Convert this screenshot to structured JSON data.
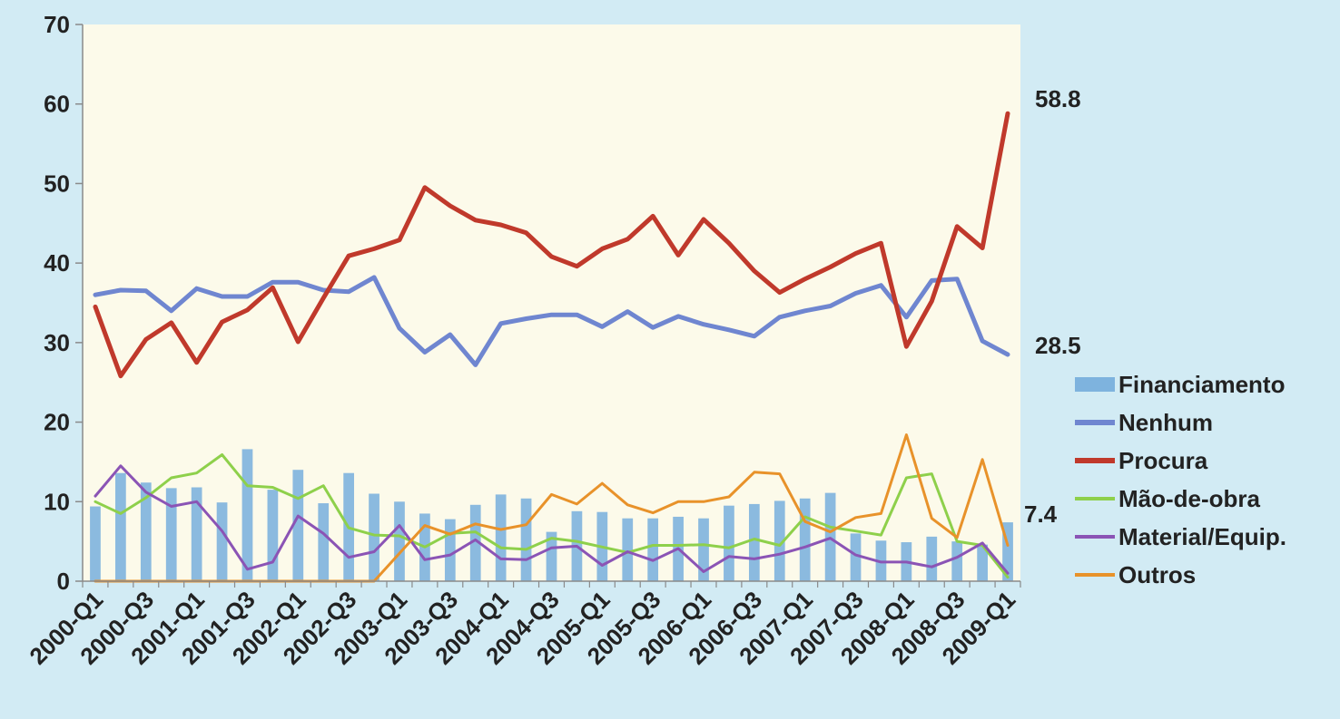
{
  "chart_data": {
    "type": "bar+line",
    "title": "",
    "xlabel": "",
    "ylabel": "",
    "ylim": [
      0,
      70
    ],
    "y_ticks": [
      0,
      10,
      20,
      30,
      40,
      50,
      60,
      70
    ],
    "grid": false,
    "legend_position": "right",
    "categories": [
      "2000-Q1",
      "2000-Q2",
      "2000-Q3",
      "2000-Q4",
      "2001-Q1",
      "2001-Q2",
      "2001-Q3",
      "2001-Q4",
      "2002-Q1",
      "2002-Q2",
      "2002-Q3",
      "2002-Q4",
      "2003-Q1",
      "2003-Q2",
      "2003-Q3",
      "2003-Q4",
      "2004-Q1",
      "2004-Q2",
      "2004-Q3",
      "2004-Q4",
      "2005-Q1",
      "2005-Q2",
      "2005-Q3",
      "2005-Q4",
      "2006-Q1",
      "2006-Q2",
      "2006-Q3",
      "2006-Q4",
      "2007-Q1",
      "2007-Q2",
      "2007-Q3",
      "2007-Q4",
      "2008-Q1",
      "2008-Q2",
      "2008-Q3",
      "2008-Q4",
      "2009-Q1"
    ],
    "x_tick_labels": [
      "2000-Q1",
      "2000-Q3",
      "2001-Q1",
      "2001-Q3",
      "2002-Q1",
      "2002-Q3",
      "2003-Q1",
      "2003-Q3",
      "2004-Q1",
      "2004-Q3",
      "2005-Q1",
      "2005-Q3",
      "2006-Q1",
      "2006-Q3",
      "2007-Q1",
      "2007-Q3",
      "2008-Q1",
      "2008-Q3",
      "2009-Q1"
    ],
    "series": [
      {
        "name": "Financiamento",
        "kind": "bar",
        "color": "#7eb3de",
        "values": [
          9.4,
          13.6,
          12.4,
          11.7,
          11.8,
          9.9,
          16.6,
          11.5,
          14.0,
          9.8,
          13.6,
          11.0,
          10.0,
          8.5,
          7.8,
          9.6,
          10.9,
          10.4,
          6.2,
          8.8,
          8.7,
          7.9,
          7.9,
          8.1,
          7.9,
          9.5,
          9.7,
          10.1,
          10.4,
          11.1,
          6.0,
          5.1,
          4.9,
          5.6,
          5.0,
          4.6,
          7.4
        ]
      },
      {
        "name": "Nenhum",
        "kind": "line",
        "color": "#6f86d0",
        "values": [
          36.0,
          36.6,
          36.5,
          34.0,
          36.8,
          35.8,
          35.8,
          37.6,
          37.6,
          36.6,
          36.4,
          38.2,
          31.8,
          28.8,
          31.0,
          27.2,
          32.4,
          33.0,
          33.5,
          33.5,
          32.0,
          33.9,
          31.9,
          33.3,
          32.3,
          31.6,
          30.8,
          33.2,
          34.0,
          34.6,
          36.2,
          37.2,
          33.2,
          37.8,
          38.0,
          30.2,
          28.5
        ]
      },
      {
        "name": "Procura",
        "kind": "line",
        "color": "#c0392b",
        "values": [
          34.5,
          25.8,
          30.4,
          32.5,
          27.5,
          32.6,
          34.1,
          36.9,
          30.1,
          35.6,
          40.9,
          41.8,
          42.9,
          49.5,
          47.2,
          45.4,
          44.8,
          43.8,
          40.8,
          39.6,
          41.8,
          43.0,
          45.9,
          41.0,
          45.5,
          42.5,
          39.0,
          36.3,
          38.0,
          39.5,
          41.2,
          42.5,
          29.5,
          35.2,
          44.6,
          41.9,
          58.8
        ]
      },
      {
        "name": "Mão-de-obra",
        "kind": "line",
        "color": "#8ed04b",
        "values": [
          10.0,
          8.5,
          10.5,
          13.0,
          13.6,
          15.9,
          12.0,
          11.8,
          10.4,
          12.0,
          6.7,
          5.8,
          5.7,
          4.3,
          6.0,
          6.2,
          4.2,
          4.0,
          5.4,
          5.0,
          4.3,
          3.6,
          4.5,
          4.5,
          4.6,
          4.2,
          5.3,
          4.5,
          8.1,
          6.8,
          6.3,
          5.8,
          13.0,
          13.5,
          5.0,
          4.5,
          0.5
        ]
      },
      {
        "name": "Material/Equip.",
        "kind": "line",
        "color": "#8b54b5",
        "values": [
          10.7,
          14.5,
          11.2,
          9.4,
          10.0,
          6.3,
          1.5,
          2.4,
          8.2,
          6.0,
          3.0,
          3.7,
          7.0,
          2.7,
          3.3,
          5.2,
          2.8,
          2.7,
          4.2,
          4.4,
          2.0,
          3.7,
          2.6,
          4.1,
          1.2,
          3.1,
          2.8,
          3.4,
          4.3,
          5.4,
          3.3,
          2.4,
          2.4,
          1.8,
          3.0,
          4.8,
          1.0
        ]
      },
      {
        "name": "Outros",
        "kind": "line",
        "color": "#e8922a",
        "values": [
          0,
          0,
          0,
          0,
          0,
          0,
          0,
          0,
          0,
          0,
          0,
          0,
          3.5,
          7.0,
          5.9,
          7.2,
          6.5,
          7.1,
          10.9,
          9.7,
          12.3,
          9.6,
          8.6,
          10.0,
          10.0,
          10.6,
          13.7,
          13.5,
          7.5,
          6.2,
          8.0,
          8.5,
          18.4,
          7.9,
          5.5,
          15.3,
          4.5
        ]
      }
    ],
    "end_labels": [
      {
        "series": "Procura",
        "text": "58.8",
        "value": 58.8
      },
      {
        "series": "Nenhum",
        "text": "28.5",
        "value": 28.5
      },
      {
        "series": "Financiamento",
        "text": "7.4",
        "value": 7.4
      }
    ]
  }
}
